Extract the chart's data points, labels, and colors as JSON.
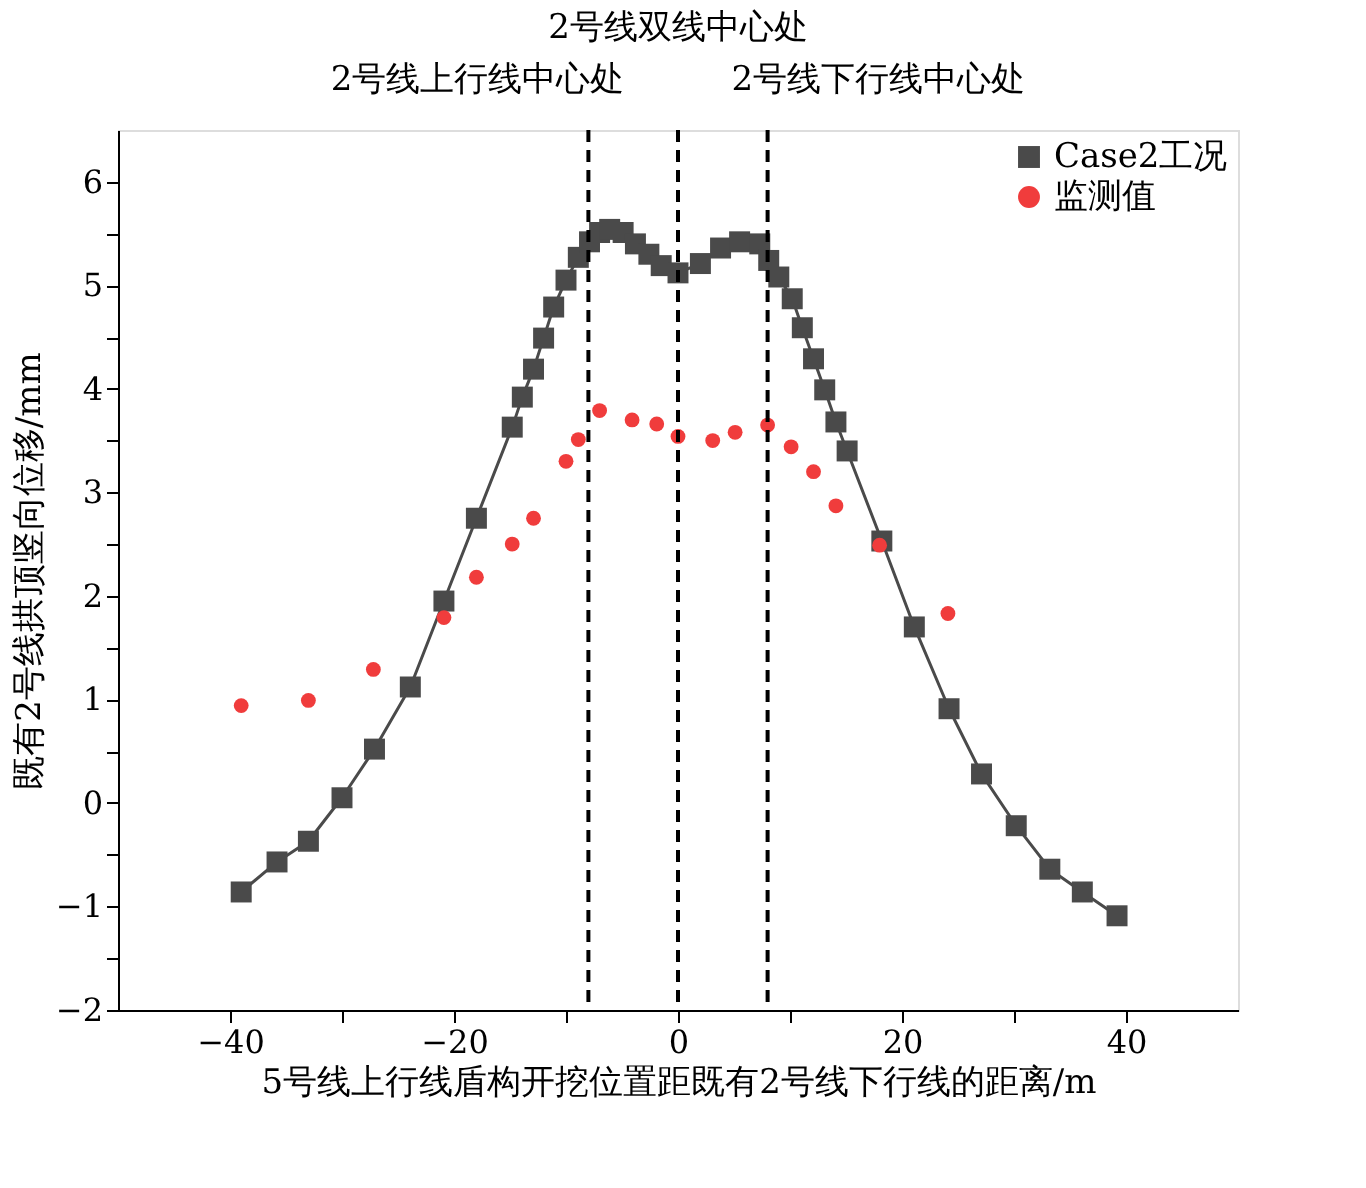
{
  "chart_data": {
    "type": "line",
    "xlabel": "5号线上行线盾构开挖位置距既有2号线下行线的距离/m",
    "ylabel": "既有2号线拱顶竖向位移/mm",
    "xlim": [
      -50,
      50
    ],
    "xticks": [
      -40,
      {
        "value": -30,
        "label": null
      },
      -20,
      {
        "value": -10,
        "label": null
      },
      0,
      {
        "value": 10,
        "label": null
      },
      20,
      {
        "value": 30,
        "label": null
      },
      40
    ],
    "ylim": [
      -2,
      6.5
    ],
    "yticks": [
      -2,
      {
        "value": -1.5,
        "label": null
      },
      -1,
      {
        "value": -0.5,
        "label": null
      },
      0,
      {
        "value": 0.5,
        "label": null
      },
      1,
      {
        "value": 1.5,
        "label": null
      },
      2,
      {
        "value": 2.5,
        "label": null
      },
      3,
      {
        "value": 3.5,
        "label": null
      },
      4,
      {
        "value": 4.5,
        "label": null
      },
      5,
      {
        "value": 5.5,
        "label": null
      },
      6
    ],
    "grid": false,
    "legend": "top right",
    "line_style": "solid",
    "series": [
      {
        "name": "Case2工况",
        "marker": "square",
        "color": "#4a4a4a",
        "x": [
          -39,
          -35.8,
          -33,
          -30,
          -27.1,
          -23.9,
          -20.9,
          -18,
          -14.8,
          -13.9,
          -12.9,
          -12,
          -11.1,
          -10,
          -8.9,
          -7.9,
          -7,
          -6.1,
          -4.9,
          -3.8,
          -2.6,
          -1.5,
          0,
          2,
          3.8,
          5.5,
          7.3,
          8.1,
          9,
          10.2,
          11.1,
          12.1,
          13.1,
          14.1,
          15.1,
          18.2,
          21.1,
          24.2,
          27.1,
          30.2,
          33.2,
          36.1,
          39.2
        ],
        "values": [
          -0.86,
          -0.57,
          -0.37,
          0.05,
          0.52,
          1.12,
          1.95,
          2.75,
          3.63,
          3.92,
          4.19,
          4.49,
          4.79,
          5.05,
          5.27,
          5.42,
          5.51,
          5.54,
          5.51,
          5.4,
          5.3,
          5.19,
          5.12,
          5.21,
          5.36,
          5.42,
          5.4,
          5.24,
          5.08,
          4.87,
          4.59,
          4.29,
          3.99,
          3.68,
          3.4,
          2.53,
          1.7,
          0.91,
          0.28,
          -0.22,
          -0.64,
          -0.86,
          -1.09
        ]
      },
      {
        "name": "监测值",
        "type": "scatter",
        "marker": "circle",
        "color": "#f03c3c",
        "x": [
          -39,
          -33,
          -27.2,
          -20.9,
          -18,
          -14.8,
          -12.9,
          -10,
          -8.9,
          -7,
          -4.1,
          -1.9,
          0,
          3.1,
          5.1,
          8,
          10.1,
          12.1,
          14.1,
          18,
          24.1
        ],
        "values": [
          0.94,
          0.99,
          1.29,
          1.79,
          2.18,
          2.5,
          2.75,
          3.3,
          3.51,
          3.79,
          3.7,
          3.66,
          3.54,
          3.5,
          3.58,
          3.65,
          3.44,
          3.2,
          2.87,
          2.49,
          1.83
        ]
      }
    ],
    "ref_lines": [
      {
        "axis": "x",
        "value": -8,
        "label": "2号线上行线中心处",
        "color": "#000000",
        "line_style": "dashed"
      },
      {
        "axis": "x",
        "value": 0,
        "label": "2号线双线中心处",
        "color": "#000000",
        "line_style": "dashed"
      },
      {
        "axis": "x",
        "value": 8,
        "label": "2号线下行线中心处",
        "color": "#000000",
        "line_style": "dashed"
      }
    ]
  }
}
